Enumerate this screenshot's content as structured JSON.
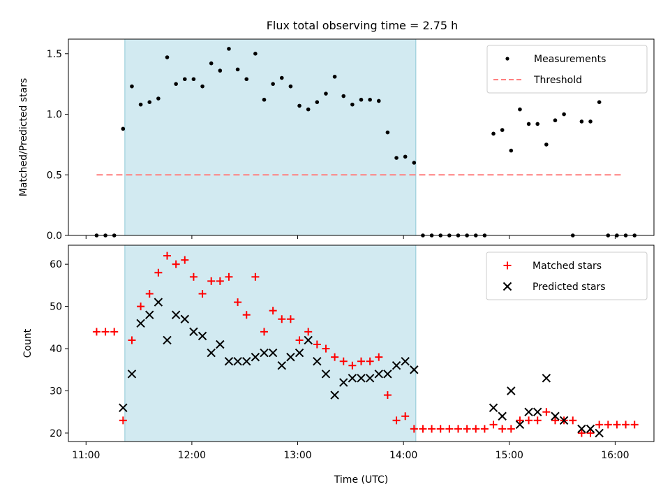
{
  "figure": {
    "title": "Flux total observing time = 2.75 h",
    "xlabel": "Time (UTC)",
    "xticks": [
      "11:00",
      "12:00",
      "13:00",
      "14:00",
      "15:00",
      "16:00"
    ],
    "shaded_interval": [
      "11:22",
      "14:07"
    ],
    "shade_color": "#add8e6",
    "colors": {
      "measurements": "#000000",
      "threshold": "#ff7f7f",
      "matched": "#ff0000",
      "predicted": "#000000"
    }
  },
  "chart_data": [
    {
      "type": "scatter",
      "ylabel": "Matched/Predicted stars",
      "yticks": [
        "0.0",
        "0.5",
        "1.0",
        "1.5"
      ],
      "ylim": [
        0,
        1.62
      ],
      "xlim": [
        "10:50",
        "16:22"
      ],
      "legend_position": "top-right",
      "threshold": {
        "name": "Threshold",
        "value": 0.5,
        "x_range": [
          "11:06",
          "16:05"
        ],
        "style": "dashed"
      },
      "series": [
        {
          "name": "Measurements",
          "points": [
            [
              "11:06",
              0
            ],
            [
              "11:11",
              0
            ],
            [
              "11:16",
              0
            ],
            [
              "11:21",
              0.88
            ],
            [
              "11:26",
              1.23
            ],
            [
              "11:31",
              1.08
            ],
            [
              "11:36",
              1.1
            ],
            [
              "11:41",
              1.13
            ],
            [
              "11:46",
              1.47
            ],
            [
              "11:51",
              1.25
            ],
            [
              "11:56",
              1.29
            ],
            [
              "12:01",
              1.29
            ],
            [
              "12:06",
              1.23
            ],
            [
              "12:11",
              1.42
            ],
            [
              "12:16",
              1.36
            ],
            [
              "12:21",
              1.54
            ],
            [
              "12:26",
              1.37
            ],
            [
              "12:31",
              1.29
            ],
            [
              "12:36",
              1.5
            ],
            [
              "12:41",
              1.12
            ],
            [
              "12:46",
              1.25
            ],
            [
              "12:51",
              1.3
            ],
            [
              "12:56",
              1.23
            ],
            [
              "13:01",
              1.07
            ],
            [
              "13:06",
              1.04
            ],
            [
              "13:11",
              1.1
            ],
            [
              "13:16",
              1.17
            ],
            [
              "13:21",
              1.31
            ],
            [
              "13:26",
              1.15
            ],
            [
              "13:31",
              1.08
            ],
            [
              "13:36",
              1.12
            ],
            [
              "13:41",
              1.12
            ],
            [
              "13:46",
              1.11
            ],
            [
              "13:51",
              0.85
            ],
            [
              "13:56",
              0.64
            ],
            [
              "14:01",
              0.65
            ],
            [
              "14:06",
              0.6
            ],
            [
              "14:11",
              0
            ],
            [
              "14:16",
              0
            ],
            [
              "14:21",
              0
            ],
            [
              "14:26",
              0
            ],
            [
              "14:31",
              0
            ],
            [
              "14:36",
              0
            ],
            [
              "14:41",
              0
            ],
            [
              "14:46",
              0
            ],
            [
              "14:51",
              0.84
            ],
            [
              "14:56",
              0.87
            ],
            [
              "15:01",
              0.7
            ],
            [
              "15:06",
              1.04
            ],
            [
              "15:11",
              0.92
            ],
            [
              "15:16",
              0.92
            ],
            [
              "15:21",
              0.75
            ],
            [
              "15:26",
              0.95
            ],
            [
              "15:31",
              1.0
            ],
            [
              "15:36",
              0
            ],
            [
              "15:41",
              0.94
            ],
            [
              "15:46",
              0.94
            ],
            [
              "15:51",
              1.1
            ],
            [
              "15:56",
              0
            ],
            [
              "16:01",
              0
            ],
            [
              "16:06",
              0
            ],
            [
              "16:11",
              0
            ]
          ]
        }
      ]
    },
    {
      "type": "scatter",
      "ylabel": "Count",
      "yticks": [
        "20",
        "30",
        "40",
        "50",
        "60"
      ],
      "ylim": [
        18,
        64.5
      ],
      "xlim": [
        "10:50",
        "16:22"
      ],
      "legend_position": "top-right",
      "series": [
        {
          "name": "Matched stars",
          "marker": "plus",
          "points": [
            [
              "11:06",
              44
            ],
            [
              "11:11",
              44
            ],
            [
              "11:16",
              44
            ],
            [
              "11:21",
              23
            ],
            [
              "11:26",
              42
            ],
            [
              "11:31",
              50
            ],
            [
              "11:36",
              53
            ],
            [
              "11:41",
              58
            ],
            [
              "11:46",
              62
            ],
            [
              "11:51",
              60
            ],
            [
              "11:56",
              61
            ],
            [
              "12:01",
              57
            ],
            [
              "12:06",
              53
            ],
            [
              "12:11",
              56
            ],
            [
              "12:16",
              56
            ],
            [
              "12:21",
              57
            ],
            [
              "12:26",
              51
            ],
            [
              "12:31",
              48
            ],
            [
              "12:36",
              57
            ],
            [
              "12:41",
              44
            ],
            [
              "12:46",
              49
            ],
            [
              "12:51",
              47
            ],
            [
              "12:56",
              47
            ],
            [
              "13:01",
              42
            ],
            [
              "13:06",
              44
            ],
            [
              "13:11",
              41
            ],
            [
              "13:16",
              40
            ],
            [
              "13:21",
              38
            ],
            [
              "13:26",
              37
            ],
            [
              "13:31",
              36
            ],
            [
              "13:36",
              37
            ],
            [
              "13:41",
              37
            ],
            [
              "13:46",
              38
            ],
            [
              "13:51",
              29
            ],
            [
              "13:56",
              23
            ],
            [
              "14:01",
              24
            ],
            [
              "14:06",
              21
            ],
            [
              "14:11",
              21
            ],
            [
              "14:16",
              21
            ],
            [
              "14:21",
              21
            ],
            [
              "14:26",
              21
            ],
            [
              "14:31",
              21
            ],
            [
              "14:36",
              21
            ],
            [
              "14:41",
              21
            ],
            [
              "14:46",
              21
            ],
            [
              "14:51",
              22
            ],
            [
              "14:56",
              21
            ],
            [
              "15:01",
              21
            ],
            [
              "15:06",
              23
            ],
            [
              "15:11",
              23
            ],
            [
              "15:16",
              23
            ],
            [
              "15:21",
              25
            ],
            [
              "15:26",
              23
            ],
            [
              "15:31",
              23
            ],
            [
              "15:36",
              23
            ],
            [
              "15:41",
              20
            ],
            [
              "15:46",
              20
            ],
            [
              "15:51",
              22
            ],
            [
              "15:56",
              22
            ],
            [
              "16:01",
              22
            ],
            [
              "16:06",
              22
            ],
            [
              "16:11",
              22
            ]
          ]
        },
        {
          "name": "Predicted stars",
          "marker": "x",
          "points": [
            [
              "11:21",
              26
            ],
            [
              "11:26",
              34
            ],
            [
              "11:31",
              46
            ],
            [
              "11:36",
              48
            ],
            [
              "11:41",
              51
            ],
            [
              "11:46",
              42
            ],
            [
              "11:51",
              48
            ],
            [
              "11:56",
              47
            ],
            [
              "12:01",
              44
            ],
            [
              "12:06",
              43
            ],
            [
              "12:11",
              39
            ],
            [
              "12:16",
              41
            ],
            [
              "12:21",
              37
            ],
            [
              "12:26",
              37
            ],
            [
              "12:31",
              37
            ],
            [
              "12:36",
              38
            ],
            [
              "12:41",
              39
            ],
            [
              "12:46",
              39
            ],
            [
              "12:51",
              36
            ],
            [
              "12:56",
              38
            ],
            [
              "13:01",
              39
            ],
            [
              "13:06",
              42
            ],
            [
              "13:11",
              37
            ],
            [
              "13:16",
              34
            ],
            [
              "13:21",
              29
            ],
            [
              "13:26",
              32
            ],
            [
              "13:31",
              33
            ],
            [
              "13:36",
              33
            ],
            [
              "13:41",
              33
            ],
            [
              "13:46",
              34
            ],
            [
              "13:51",
              34
            ],
            [
              "13:56",
              36
            ],
            [
              "14:01",
              37
            ],
            [
              "14:06",
              35
            ],
            [
              "14:51",
              26
            ],
            [
              "14:56",
              24
            ],
            [
              "15:01",
              30
            ],
            [
              "15:06",
              22
            ],
            [
              "15:11",
              25
            ],
            [
              "15:16",
              25
            ],
            [
              "15:21",
              33
            ],
            [
              "15:26",
              24
            ],
            [
              "15:31",
              23
            ],
            [
              "15:41",
              21
            ],
            [
              "15:46",
              21
            ],
            [
              "15:51",
              20
            ]
          ]
        }
      ]
    }
  ]
}
